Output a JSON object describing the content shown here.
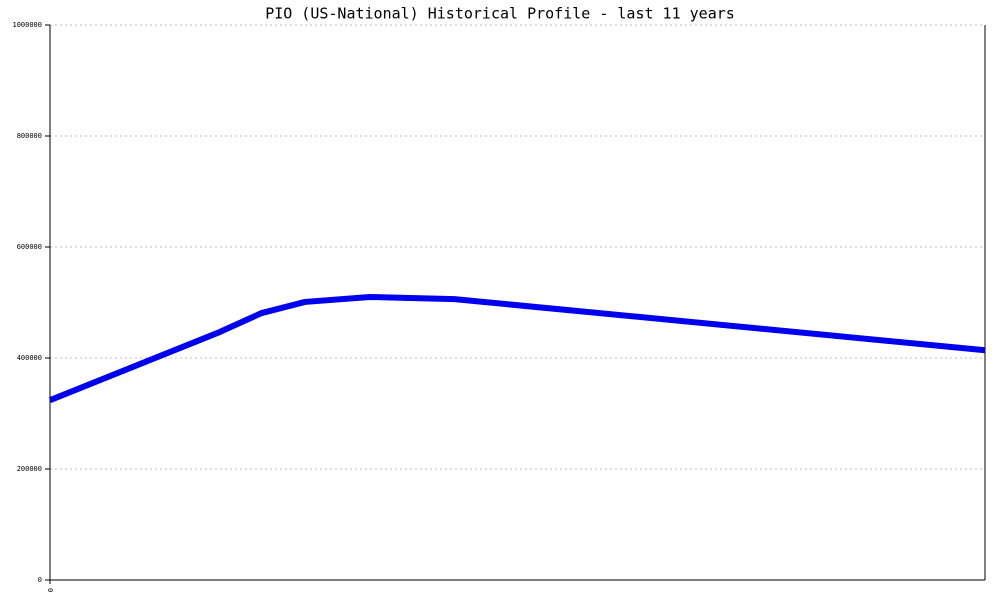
{
  "chart_data": {
    "type": "line",
    "title": "PIO (US-National) Historical Profile - last 11 years",
    "x": [
      0,
      2.0,
      2.49,
      3.0,
      3.76,
      4.76,
      11
    ],
    "series": [
      {
        "name": "PIO",
        "color": "#0000ee",
        "values": [
          324000,
          447000,
          481000,
          501000,
          510000,
          506000,
          414000
        ]
      }
    ],
    "xlim": [
      0,
      11
    ],
    "xticks": [
      0
    ],
    "ylim": [
      0,
      1000000
    ],
    "yticks": [
      0,
      200000,
      400000,
      600000,
      800000,
      1000000
    ],
    "grid": true
  }
}
